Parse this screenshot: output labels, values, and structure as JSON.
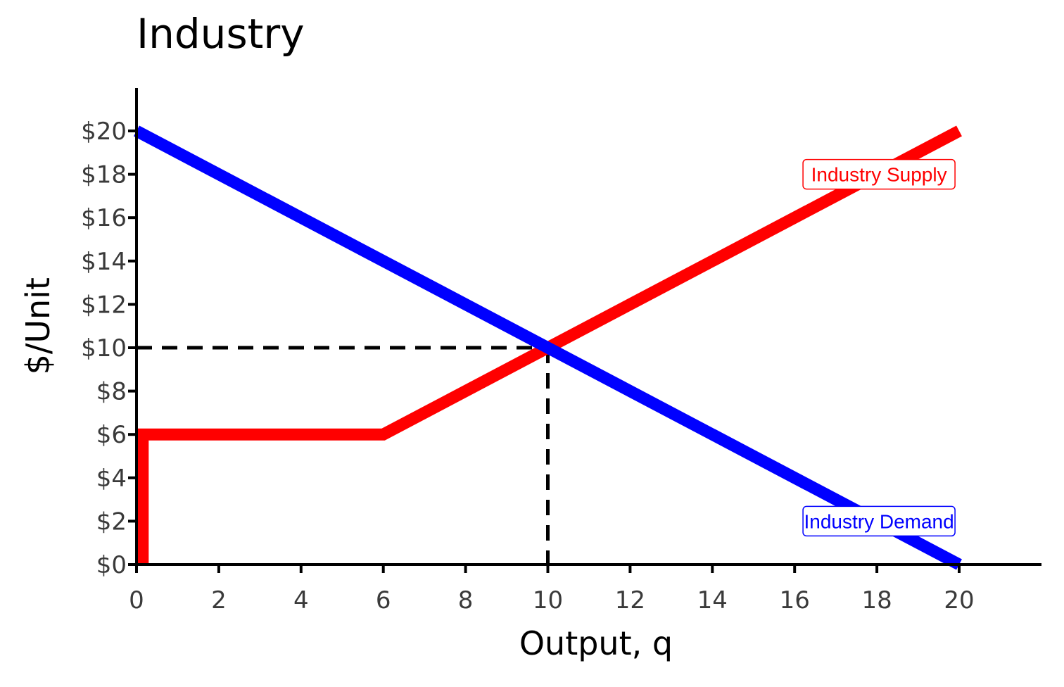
{
  "chart_data": {
    "type": "line",
    "title": "Industry",
    "xlabel": "Output, q",
    "ylabel": "$/Unit",
    "xlim": [
      0,
      22
    ],
    "ylim": [
      0,
      22
    ],
    "x_ticks": [
      0,
      2,
      4,
      6,
      8,
      10,
      12,
      14,
      16,
      18,
      20
    ],
    "x_tick_labels": [
      "0",
      "2",
      "4",
      "6",
      "8",
      "10",
      "12",
      "14",
      "16",
      "18",
      "20"
    ],
    "y_ticks": [
      0,
      2,
      4,
      6,
      8,
      10,
      12,
      14,
      16,
      18,
      20
    ],
    "y_tick_labels": [
      "$0",
      "$2",
      "$4",
      "$6",
      "$8",
      "$10",
      "$12",
      "$14",
      "$16",
      "$18",
      "$20"
    ],
    "grid": false,
    "series": [
      {
        "name": "Industry Supply",
        "color": "#ff0000",
        "points": [
          [
            0.15,
            0
          ],
          [
            0.15,
            6
          ],
          [
            6,
            6
          ],
          [
            20,
            20
          ]
        ],
        "label_at": [
          18,
          18
        ]
      },
      {
        "name": "Industry Demand",
        "color": "#0000ff",
        "points": [
          [
            0,
            20
          ],
          [
            20,
            0
          ]
        ],
        "label_at": [
          18,
          2
        ]
      }
    ],
    "equilibrium": {
      "q": 10,
      "price": 10,
      "line_style": "dashed",
      "color": "#000000"
    }
  }
}
